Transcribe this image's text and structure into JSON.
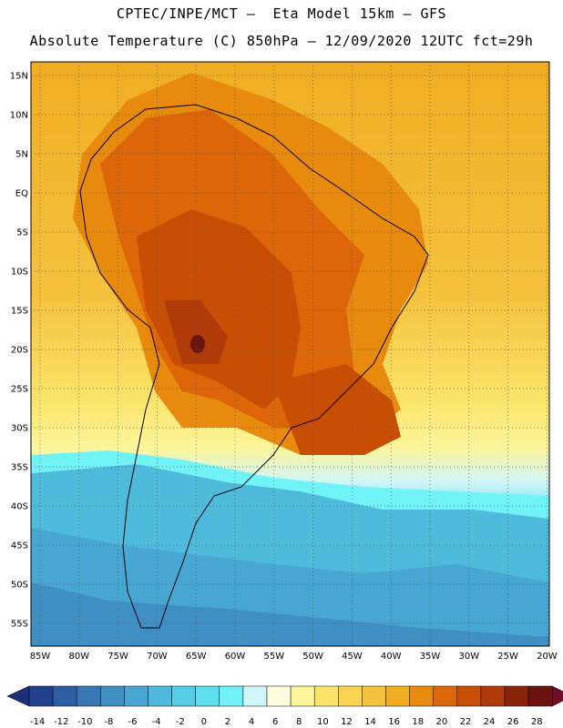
{
  "header": {
    "line1": "CPTEC/INPE/MCT –  Eta Model 15km – GFS",
    "line2": "Absolute Temperature (C) 850hPa – 12/09/2020 12UTC fct=29h"
  },
  "map": {
    "variable": "Absolute Temperature",
    "unit": "C",
    "level": "850hPa",
    "lat_labels": [
      "15N",
      "10N",
      "5N",
      "EQ",
      "5S",
      "10S",
      "15S",
      "20S",
      "25S",
      "30S",
      "35S",
      "40S",
      "45S",
      "50S",
      "55S"
    ],
    "lon_labels": [
      "85W",
      "80W",
      "75W",
      "70W",
      "65W",
      "60W",
      "55W",
      "50W",
      "45W",
      "40W",
      "35W",
      "30W",
      "25W",
      "20W"
    ]
  },
  "colorbar": {
    "labels": [
      "-14",
      "-12",
      "-10",
      "-8",
      "-6",
      "-4",
      "-2",
      "0",
      "2",
      "4",
      "6",
      "8",
      "10",
      "12",
      "14",
      "16",
      "18",
      "20",
      "22",
      "24",
      "26",
      "28"
    ],
    "colors": [
      "#22418c",
      "#2d5ea3",
      "#3777b5",
      "#3f8fc4",
      "#47a6d2",
      "#4fbbdc",
      "#55cde4",
      "#5ee0ec",
      "#6ff3f6",
      "#cff5f8",
      "#fffce0",
      "#fdf59a",
      "#fbe46a",
      "#f8d450",
      "#f5c23e",
      "#f0ad22",
      "#e88a0e",
      "#dc6608",
      "#c84e06",
      "#b03a08",
      "#8a2408",
      "#6b1410"
    ],
    "min_color": "#1c2f78",
    "max_color": "#6f0c26"
  }
}
